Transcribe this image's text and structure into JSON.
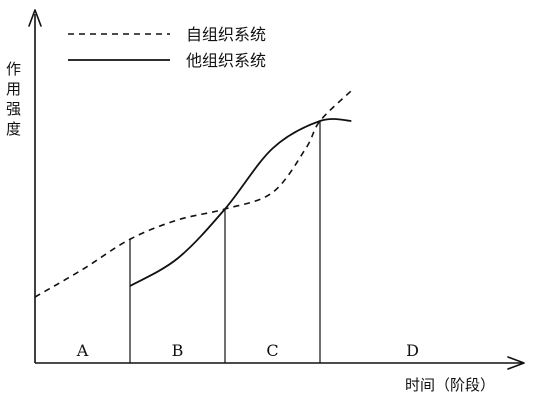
{
  "chart_data": {
    "type": "line",
    "title": "",
    "xlabel": "时间（阶段）",
    "ylabel": "作用强度",
    "stages": [
      "A",
      "B",
      "C",
      "D"
    ],
    "dividers": [
      1,
      2,
      3
    ],
    "xlim": [
      0,
      4
    ],
    "ylim": [
      0,
      1
    ],
    "legend_position": "top-left",
    "series": [
      {
        "name": "自组织系统",
        "style": "dashed",
        "points": [
          [
            0,
            0.24
          ],
          [
            0.5,
            0.34
          ],
          [
            1,
            0.45
          ],
          [
            1.5,
            0.52
          ],
          [
            2,
            0.56
          ],
          [
            2.5,
            0.62
          ],
          [
            2.85,
            0.78
          ],
          [
            3,
            0.88
          ],
          [
            3.33,
            0.99
          ]
        ]
      },
      {
        "name": "他组织系统",
        "style": "solid",
        "points": [
          [
            1,
            0.28
          ],
          [
            1.5,
            0.38
          ],
          [
            2,
            0.56
          ],
          [
            2.5,
            0.78
          ],
          [
            3,
            0.88
          ],
          [
            3.33,
            0.88
          ]
        ]
      }
    ],
    "grid": false
  }
}
